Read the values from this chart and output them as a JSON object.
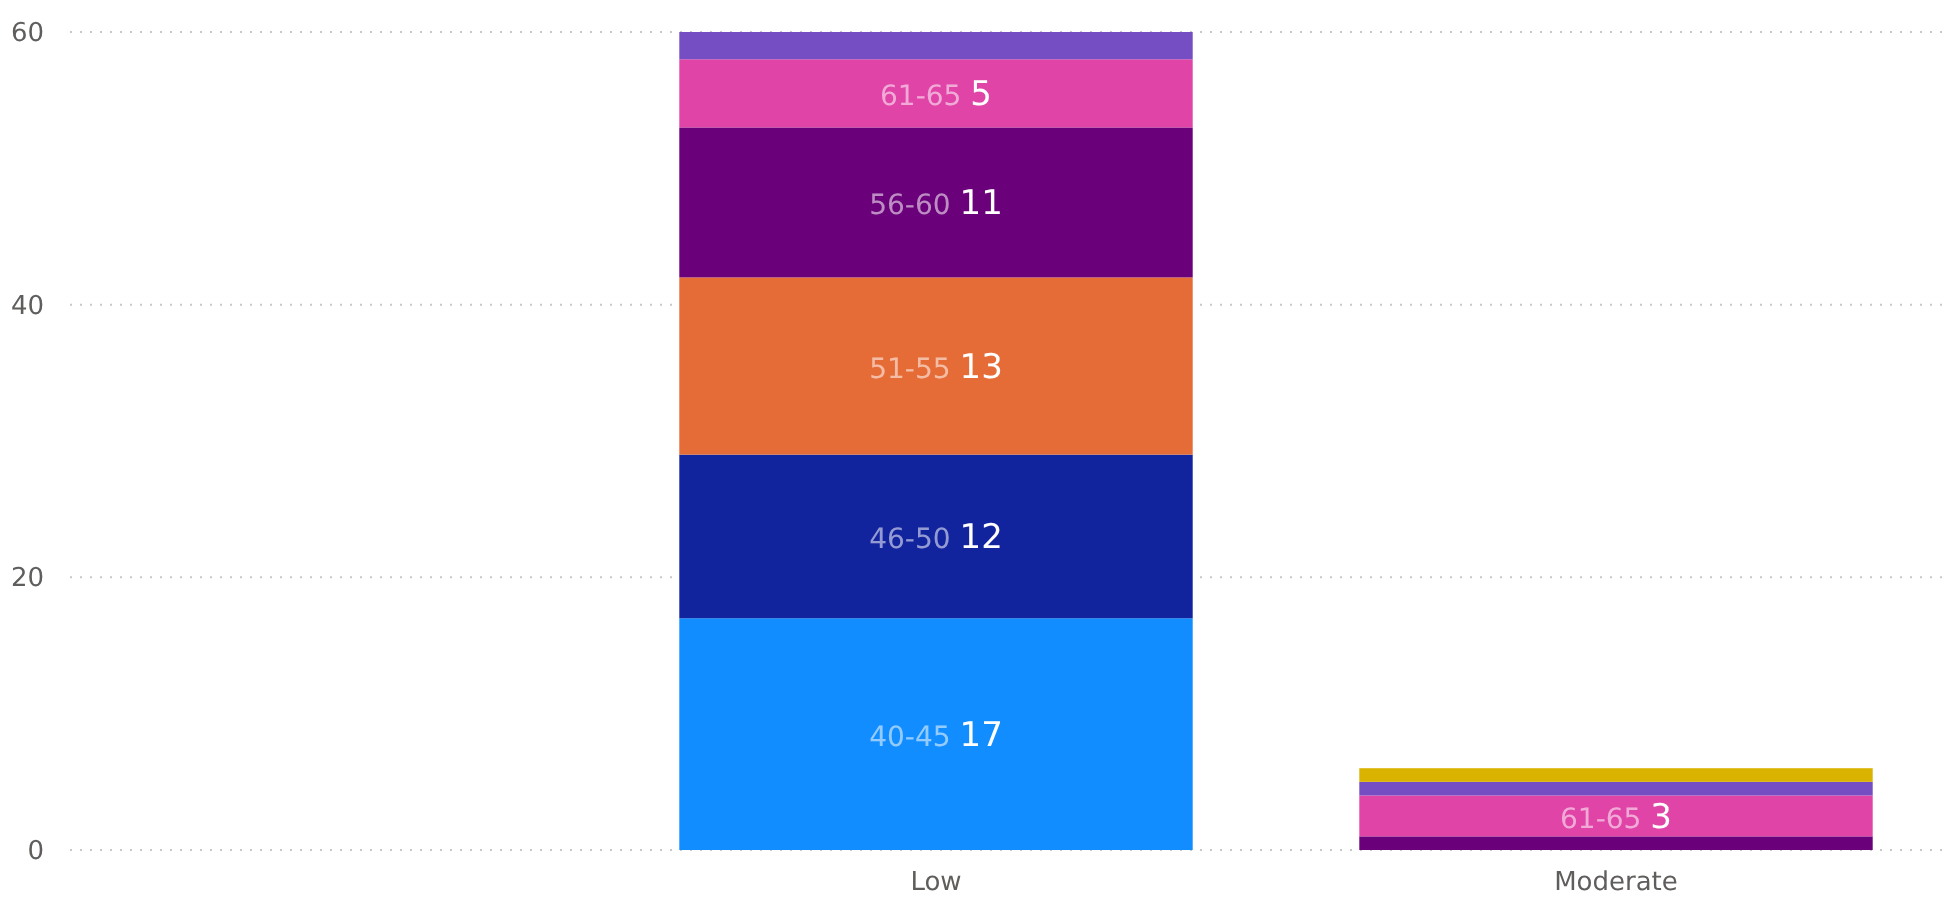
{
  "chart_data": {
    "type": "bar",
    "stacked": true,
    "categories": [
      null,
      "Low",
      "Moderate"
    ],
    "ylim": [
      0,
      60
    ],
    "yticks": [
      0,
      20,
      40,
      60
    ],
    "grid": "y",
    "series": [
      {
        "name": "40-45",
        "color": "#118dff",
        "values": [
          null,
          17,
          null
        ],
        "value_labels": [
          null,
          "17",
          null
        ]
      },
      {
        "name": "46-50",
        "color": "#12239e",
        "values": [
          null,
          12,
          null
        ],
        "value_labels": [
          null,
          "12",
          null
        ]
      },
      {
        "name": "51-55",
        "color": "#e66c37",
        "values": [
          null,
          13,
          null
        ],
        "value_labels": [
          null,
          "13",
          null
        ]
      },
      {
        "name": "56-60",
        "color": "#6b007b",
        "values": [
          null,
          11,
          1
        ],
        "value_labels": [
          null,
          "11",
          null
        ]
      },
      {
        "name": "61-65",
        "color": "#e044a7",
        "values": [
          null,
          5,
          3
        ],
        "value_labels": [
          null,
          "5",
          "3"
        ]
      },
      {
        "color": "#744ec2",
        "values": [
          null,
          2,
          1
        ]
      },
      {
        "color": "#d9b300",
        "values": [
          null,
          null,
          1
        ]
      }
    ]
  }
}
